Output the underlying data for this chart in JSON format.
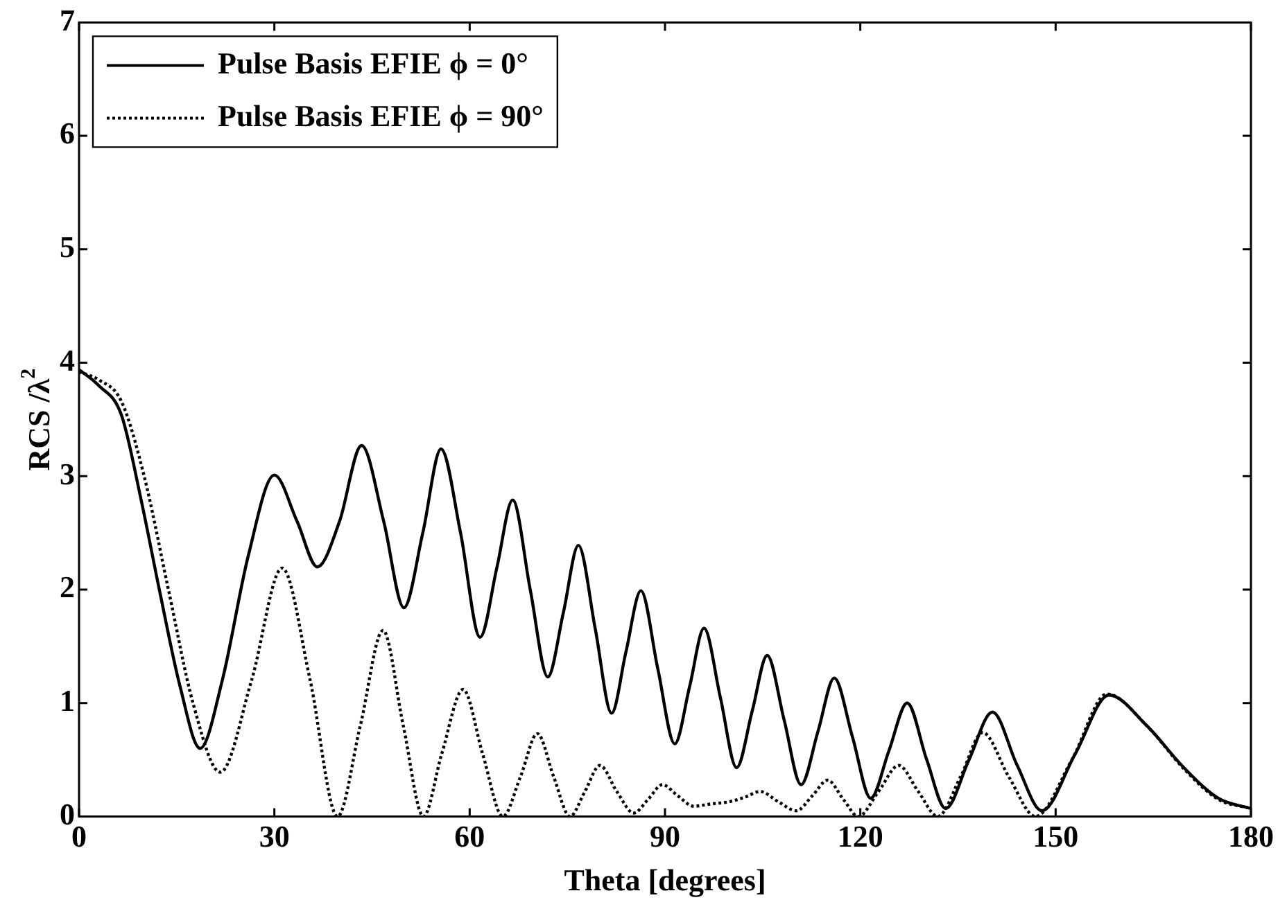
{
  "chart_data": {
    "type": "line",
    "xlabel": "Theta [degrees]",
    "ylabel": "RCS /λ$^{2}$",
    "xlim": [
      0,
      180
    ],
    "xticks": [
      0,
      30,
      60,
      90,
      120,
      150,
      180
    ],
    "ylim": [
      0,
      7
    ],
    "yticks": [
      0,
      1,
      2,
      3,
      4,
      5,
      6,
      7
    ],
    "legend": "top left",
    "marker": "none",
    "series": [
      {
        "name": "Pulse Basis EFIE ϕ = 0°",
        "color": "#000000",
        "line_style": "solid",
        "x": [
          0,
          3,
          6.5,
          9.5,
          12.4,
          15.5,
          18.6,
          22,
          26,
          30,
          33.5,
          36.6,
          40,
          43.4,
          46.8,
          49.9,
          52.8,
          55.6,
          58.6,
          61.6,
          64.2,
          66.6,
          69.3,
          72,
          74.4,
          76.7,
          79.3,
          81.8,
          84,
          86.3,
          88.9,
          91.5,
          93.8,
          96,
          98.5,
          101,
          103.4,
          105.7,
          108.3,
          110.9,
          113.5,
          116,
          118.8,
          121.6,
          124.4,
          127.2,
          130.2,
          133.1,
          136.7,
          140.3,
          144.1,
          147.9,
          153,
          158.2,
          164,
          169.7,
          175,
          180
        ],
        "values": [
          3.94,
          3.8,
          3.54,
          2.8,
          1.98,
          1.15,
          0.6,
          1.2,
          2.3,
          3.01,
          2.6,
          2.2,
          2.6,
          3.27,
          2.6,
          1.84,
          2.5,
          3.24,
          2.5,
          1.58,
          2.2,
          2.79,
          2.0,
          1.23,
          1.8,
          2.39,
          1.65,
          0.91,
          1.45,
          1.99,
          1.3,
          0.64,
          1.15,
          1.66,
          1.05,
          0.43,
          0.93,
          1.42,
          0.85,
          0.28,
          0.75,
          1.22,
          0.7,
          0.16,
          0.58,
          1.0,
          0.5,
          0.07,
          0.5,
          0.92,
          0.45,
          0.05,
          0.55,
          1.07,
          0.8,
          0.43,
          0.16,
          0.07
        ]
      },
      {
        "name": "Pulse Basis EFIE ϕ = 90°",
        "color": "#000000",
        "line_style": "dotted",
        "x": [
          0,
          3,
          6.5,
          10,
          13.8,
          17.5,
          21.7,
          26.5,
          31.2,
          35.5,
          39.7,
          43.2,
          46.7,
          49.8,
          52.9,
          55.7,
          59,
          62,
          65.1,
          67.8,
          70.4,
          72.9,
          75.4,
          77.7,
          80,
          82.6,
          85.2,
          87.4,
          89.6,
          92,
          94.4,
          97,
          99.9,
          102.3,
          104.6,
          107.4,
          110.2,
          112.6,
          115,
          117.4,
          119.7,
          122.8,
          125.9,
          128.9,
          131.9,
          135.4,
          138.8,
          142.8,
          146.9,
          152.5,
          157.9,
          164,
          169.7,
          175,
          180
        ],
        "values": [
          3.92,
          3.85,
          3.66,
          3.0,
          1.98,
          1.0,
          0.39,
          1.2,
          2.19,
          1.2,
          0,
          0.8,
          1.64,
          0.8,
          0,
          0.55,
          1.12,
          0.55,
          0,
          0.35,
          0.73,
          0.35,
          0,
          0.22,
          0.45,
          0.22,
          0.03,
          0.15,
          0.28,
          0.18,
          0.09,
          0.11,
          0.13,
          0.17,
          0.22,
          0.13,
          0.05,
          0.18,
          0.32,
          0.15,
          0,
          0.22,
          0.45,
          0.22,
          0,
          0.35,
          0.74,
          0.35,
          0,
          0.5,
          1.08,
          0.8,
          0.42,
          0.15,
          0.07
        ]
      }
    ]
  }
}
